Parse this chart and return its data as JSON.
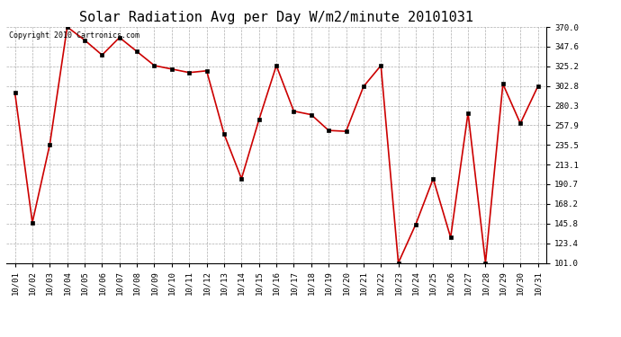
{
  "title": "Solar Radiation Avg per Day W/m2/minute 20101031",
  "copyright": "Copyright 2010 Cartronics.com",
  "dates": [
    "10/01",
    "10/02",
    "10/03",
    "10/04",
    "10/05",
    "10/06",
    "10/07",
    "10/08",
    "10/09",
    "10/10",
    "10/11",
    "10/12",
    "10/13",
    "10/14",
    "10/15",
    "10/16",
    "10/17",
    "10/18",
    "10/19",
    "10/20",
    "10/21",
    "10/22",
    "10/23",
    "10/24",
    "10/25",
    "10/26",
    "10/27",
    "10/28",
    "10/29",
    "10/30",
    "10/31"
  ],
  "values": [
    295,
    147,
    236,
    370,
    355,
    338,
    358,
    342,
    326,
    322,
    318,
    320,
    248,
    197,
    264,
    326,
    274,
    270,
    252,
    251,
    302,
    326,
    101,
    145,
    197,
    130,
    272,
    101,
    305,
    260,
    302
  ],
  "line_color": "#cc0000",
  "marker_color": "#000000",
  "bg_color": "#ffffff",
  "grid_color": "#999999",
  "ylim_min": 101.0,
  "ylim_max": 370.0,
  "yticks": [
    101.0,
    123.4,
    145.8,
    168.2,
    190.7,
    213.1,
    235.5,
    257.9,
    280.3,
    302.8,
    325.2,
    347.6,
    370.0
  ],
  "title_fontsize": 11,
  "copyright_fontsize": 6,
  "tick_fontsize": 6.5
}
